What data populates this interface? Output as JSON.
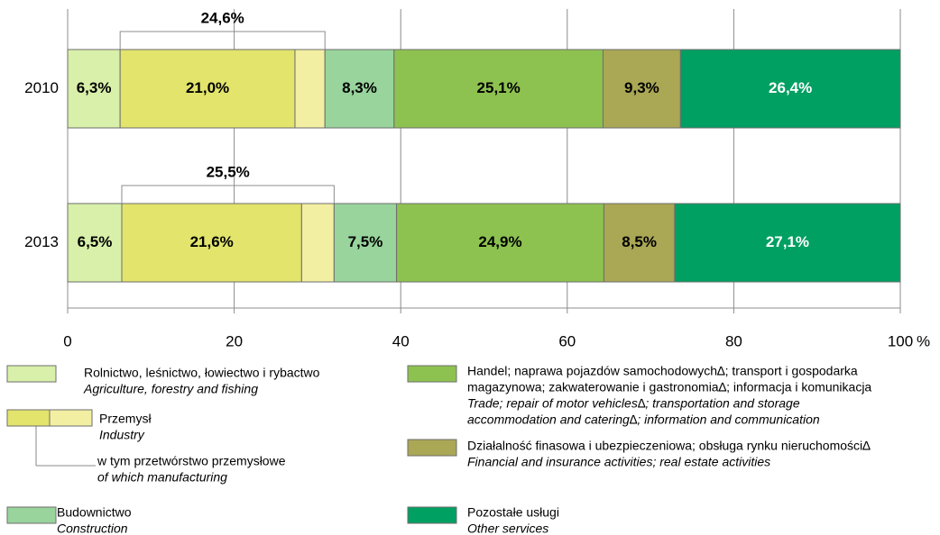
{
  "chart_data": {
    "type": "stacked-bar-horizontal",
    "categories": [
      "2010",
      "2013"
    ],
    "xlim": [
      0,
      100
    ],
    "xticks": [
      0,
      20,
      40,
      60,
      80,
      100
    ],
    "x_unit": "%",
    "grid": true,
    "series": [
      {
        "name": [
          "Rolnictwo, leśnictwo, łowiectwo i rybactwo"
        ],
        "name_en": [
          "Agriculture, forestry and fishing"
        ],
        "color": "#d8f0aa",
        "label_color": "#000000",
        "values": [
          6.3,
          6.5
        ],
        "value_labels": [
          "6,3%",
          "6,5%"
        ]
      },
      {
        "name": [
          "w tym przetwórstwo przemysłowe"
        ],
        "name_en": [
          "of which manufacturing"
        ],
        "color": "#e2e46c",
        "label_color": "#000000",
        "values": [
          21.0,
          21.6
        ],
        "value_labels": [
          "21,0%",
          "21,6%"
        ]
      },
      {
        "color": "#f2efa2",
        "values": [
          3.6,
          3.9
        ]
      },
      {
        "name": [
          "Budownictwo"
        ],
        "name_en": [
          "Construction"
        ],
        "color": "#98d49c",
        "label_color": "#000000",
        "values": [
          8.3,
          7.5
        ],
        "value_labels": [
          "8,3%",
          "7,5%"
        ]
      },
      {
        "name": [
          "Handel; naprawa pojazdów samochodowych∆; transport i gospodarka",
          "magazynowa; zakwaterowanie i gastronomia∆; informacja i komunikacja"
        ],
        "name_en": [
          "Trade; repair of motor vehicles∆; transportation and storage",
          "accommodation and catering∆; information and communication"
        ],
        "color": "#8dc250",
        "label_color": "#000000",
        "values": [
          25.1,
          24.9
        ],
        "value_labels": [
          "25,1%",
          "24,9%"
        ]
      },
      {
        "name": [
          "Działalność finasowa i ubezpieczeniowa; obsługa rynku nieruchomości∆"
        ],
        "name_en": [
          "Financial and insurance activities; real estate activities"
        ],
        "color": "#aaa755",
        "label_color": "#000000",
        "values": [
          9.3,
          8.5
        ],
        "value_labels": [
          "9,3%",
          "8,5%"
        ]
      },
      {
        "name": [
          "Pozostałe usługi"
        ],
        "name_en": [
          "Other services"
        ],
        "color": "#00a062",
        "label_color": "#ffffff",
        "values": [
          26.4,
          27.1
        ],
        "value_labels": [
          "26,4%",
          "27,1%"
        ]
      }
    ],
    "industry_legend": {
      "name": "Przemysł",
      "name_en": "Industry"
    },
    "industry_totals": [
      24.6,
      25.5
    ],
    "industry_total_labels": [
      "24,6%",
      "25,5%"
    ]
  }
}
